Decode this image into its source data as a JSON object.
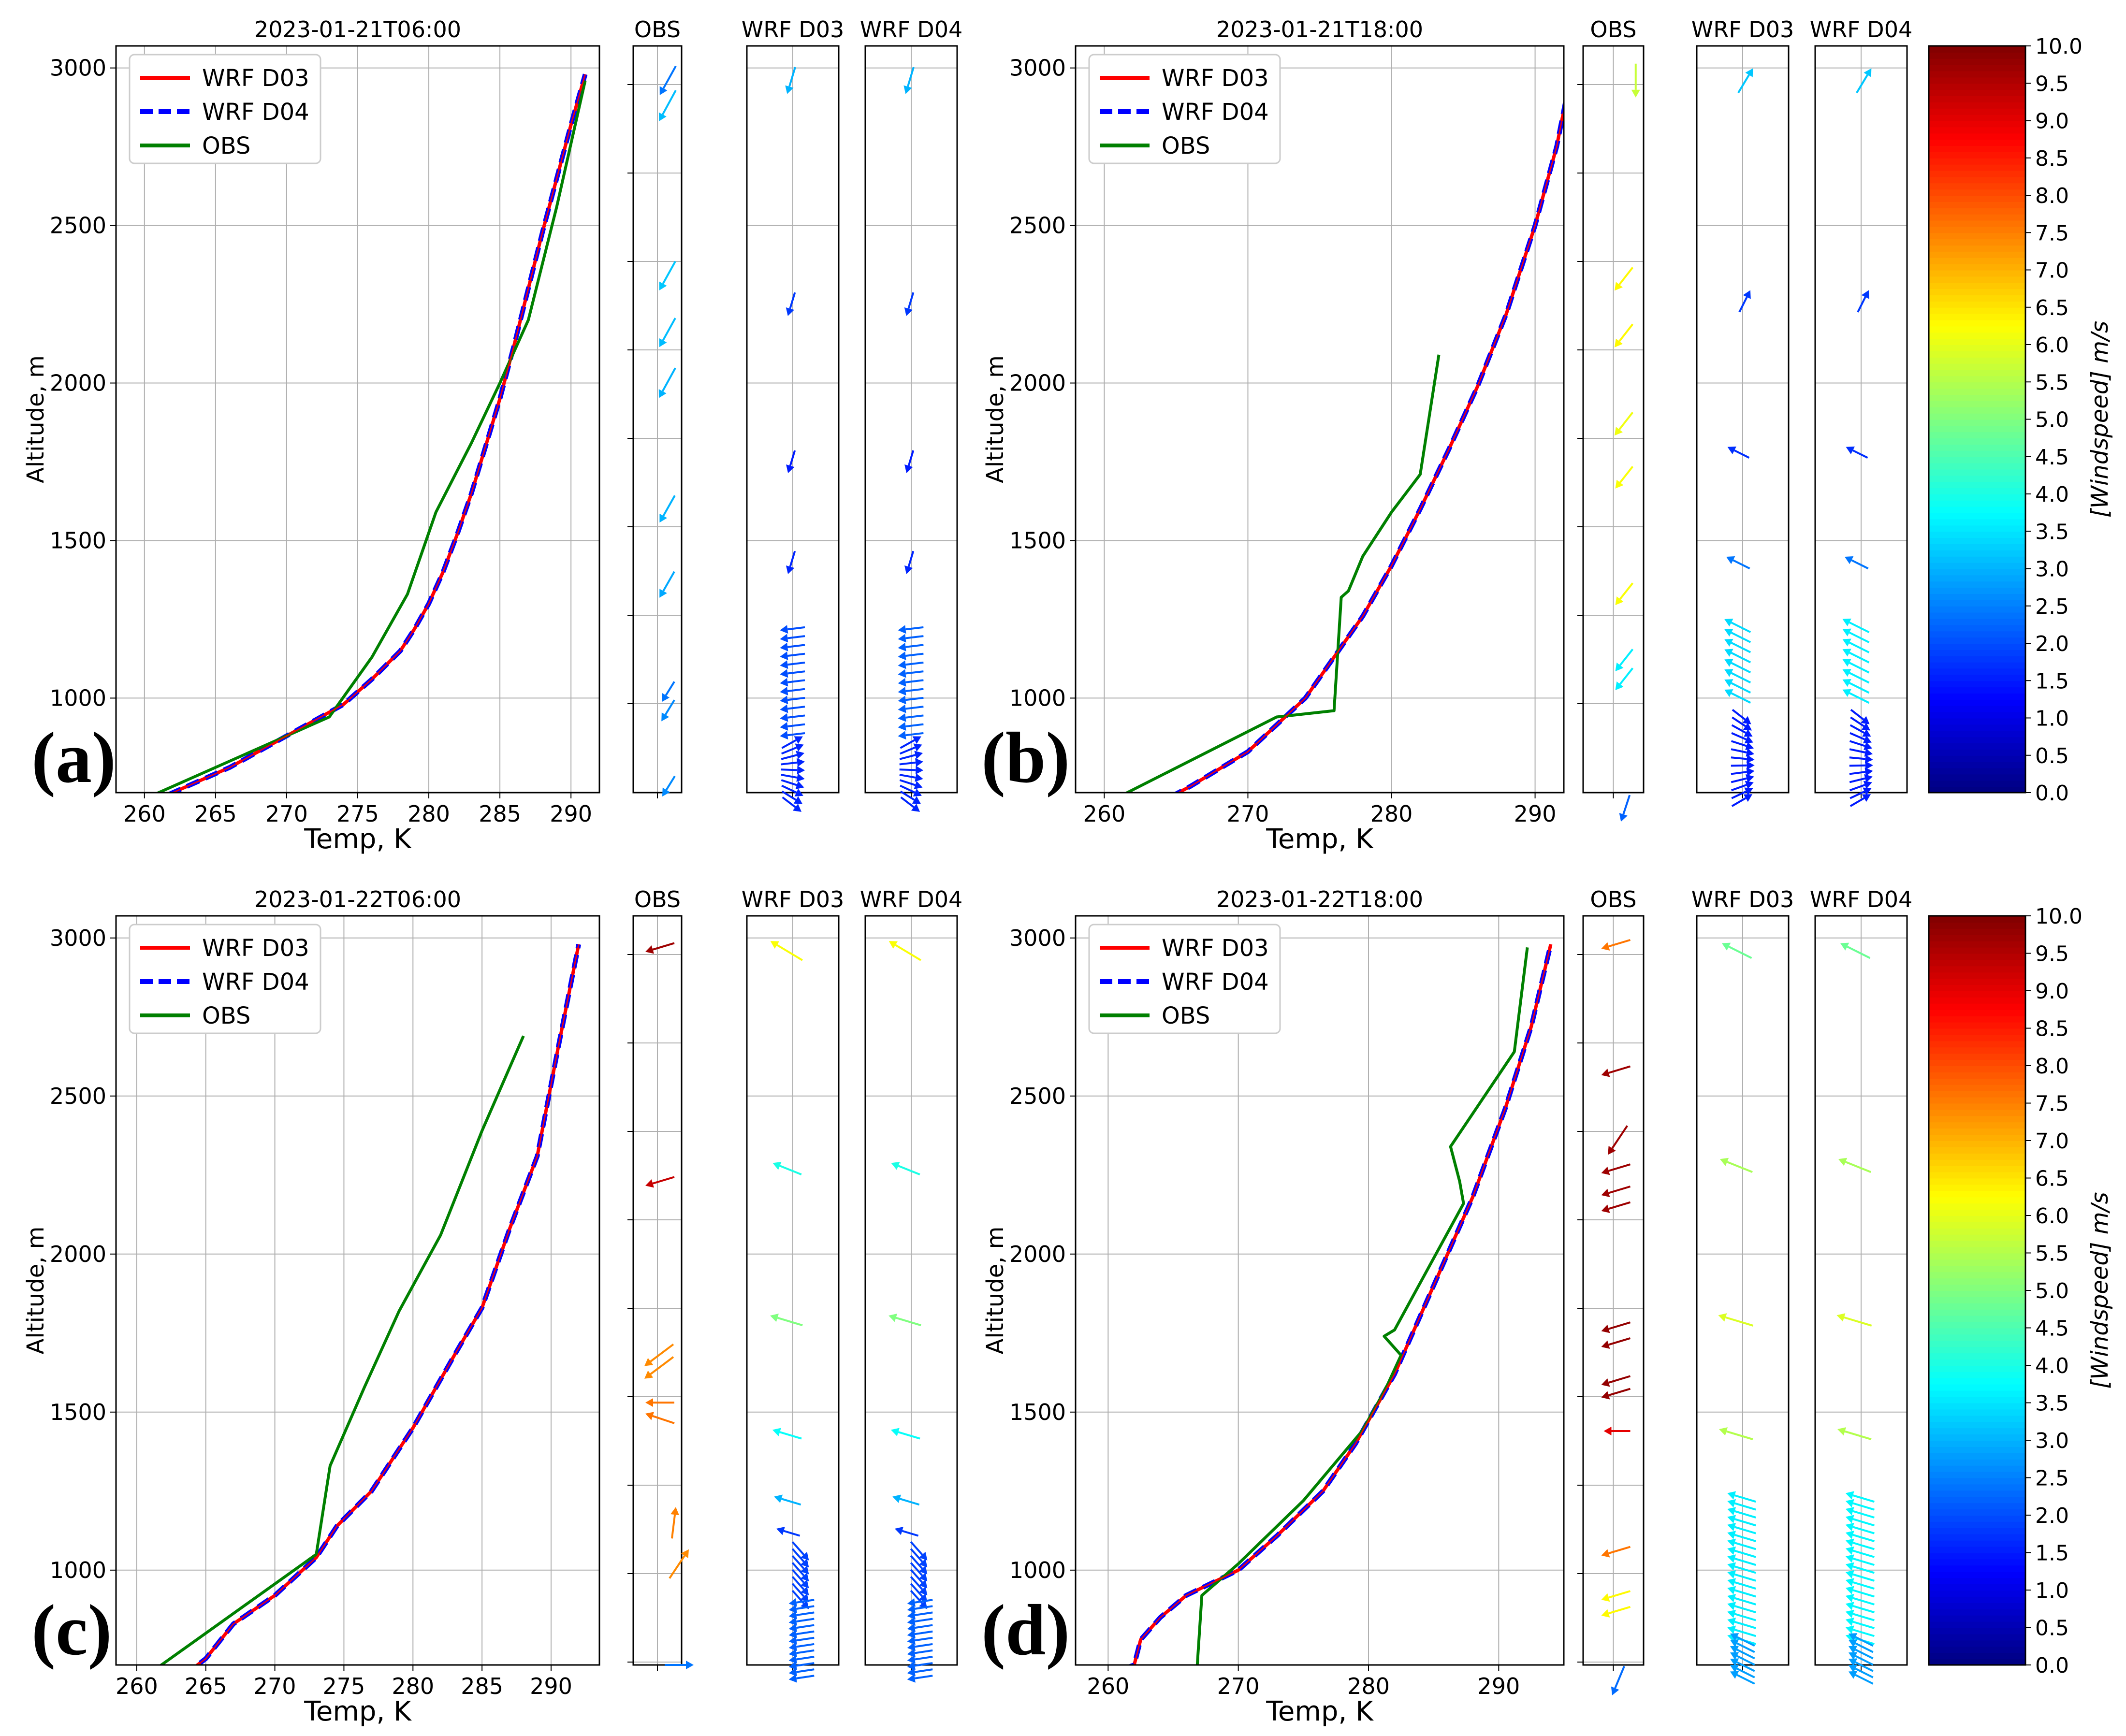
{
  "figure": {
    "colorbar": {
      "label": "[Windspeed]  m/s",
      "ticks": [
        "0.0",
        "0.5",
        "1.0",
        "1.5",
        "2.0",
        "2.5",
        "3.0",
        "3.5",
        "4.0",
        "4.5",
        "5.0",
        "5.5",
        "6.0",
        "6.5",
        "7.0",
        "7.5",
        "8.0",
        "8.5",
        "9.0",
        "9.5",
        "10.0"
      ],
      "range": [
        0,
        10
      ]
    }
  },
  "chart_data": [
    {
      "panel": "(a)",
      "type": "line",
      "title": "2023-01-21T06:00",
      "xlabel": "Temp, K",
      "ylabel": "Altitude, m",
      "xlim": [
        258,
        292
      ],
      "ylim": [
        700,
        3070
      ],
      "xticks": [
        "260",
        "265",
        "270",
        "275",
        "280",
        "285",
        "290"
      ],
      "xtick_values": [
        260,
        265,
        270,
        275,
        280,
        285,
        290
      ],
      "yticks": [
        "1000",
        "1500",
        "2000",
        "2500",
        "3000"
      ],
      "ytick_values": [
        1000,
        1500,
        2000,
        2500,
        3000
      ],
      "legend": [
        "WRF D03",
        "WRF D04",
        "OBS"
      ],
      "series": [
        {
          "name": "WRF D03",
          "color": "#ff0000",
          "x": [
            259,
            260,
            262,
            264,
            266,
            268,
            270,
            272,
            274,
            276,
            278,
            279,
            280,
            281,
            282,
            283,
            284,
            285,
            286,
            287,
            288,
            289,
            290,
            291
          ],
          "y": [
            650,
            660,
            700,
            740,
            780,
            830,
            880,
            930,
            980,
            1060,
            1150,
            1220,
            1300,
            1400,
            1520,
            1650,
            1800,
            1950,
            2120,
            2300,
            2480,
            2650,
            2820,
            2980
          ]
        },
        {
          "name": "WRF D04",
          "color": "#0000ff",
          "x": [
            259,
            260,
            262,
            264,
            266,
            268,
            270,
            272,
            274,
            276,
            278,
            279,
            280,
            281,
            282,
            283,
            284,
            285,
            286,
            287,
            288,
            289,
            290,
            291
          ],
          "y": [
            650,
            660,
            700,
            740,
            780,
            830,
            880,
            930,
            980,
            1060,
            1150,
            1220,
            1300,
            1400,
            1520,
            1650,
            1800,
            1950,
            2120,
            2300,
            2480,
            2650,
            2820,
            2980
          ]
        },
        {
          "name": "OBS",
          "color": "#008000",
          "x": [
            259,
            262,
            266,
            270,
            273,
            276,
            278.5,
            280.5,
            283,
            285,
            287,
            288,
            289,
            290,
            291
          ],
          "y": [
            660,
            720,
            800,
            880,
            940,
            1130,
            1330,
            1590,
            1810,
            2000,
            2200,
            2380,
            2560,
            2760,
            2960
          ]
        }
      ],
      "wind_columns": [
        {
          "label": "OBS",
          "kind": "obs",
          "arrows": [
            [
              2960,
              2.4,
              6.6,
              3.8
            ],
            [
              2880,
              3.1,
              6.6,
              4.2
            ],
            [
              2340,
              3.2,
              6.4,
              3.8
            ],
            [
              2160,
              3.1,
              6.4,
              3.8
            ],
            [
              2000,
              3.0,
              6.4,
              4.0
            ],
            [
              1600,
              3.0,
              6.2,
              3.4
            ],
            [
              1360,
              2.9,
              6.0,
              3.2
            ],
            [
              1020,
              2.4,
              6.0,
              2.0
            ],
            [
              960,
              2.6,
              6.0,
              2.2
            ],
            [
              720,
              2.6,
              6.2,
              2.0
            ]
          ]
        },
        {
          "label": "WRF D03",
          "kind": "model",
          "scheme": "a"
        },
        {
          "label": "WRF D04",
          "kind": "model",
          "scheme": "a"
        }
      ]
    },
    {
      "panel": "(b)",
      "type": "line",
      "title": "2023-01-21T18:00",
      "xlabel": "Temp, K",
      "ylabel": "Altitude, m",
      "xlim": [
        258,
        292
      ],
      "ylim": [
        700,
        3070
      ],
      "xticks": [
        "260",
        "270",
        "280",
        "290"
      ],
      "xtick_values": [
        260,
        270,
        280,
        290
      ],
      "yticks": [
        "1000",
        "1500",
        "2000",
        "2500",
        "3000"
      ],
      "ytick_values": [
        1000,
        1500,
        2000,
        2500,
        3000
      ],
      "legend": [
        "WRF D03",
        "WRF D04",
        "OBS"
      ],
      "series": [
        {
          "name": "WRF D03",
          "color": "#ff0000",
          "x": [
            262,
            263.5,
            266,
            270,
            274,
            278,
            280,
            282,
            284,
            286,
            288,
            290,
            291.5,
            292.5
          ],
          "y": [
            630,
            660,
            720,
            830,
            1000,
            1260,
            1420,
            1600,
            1790,
            1990,
            2220,
            2500,
            2750,
            2980
          ]
        },
        {
          "name": "WRF D04",
          "color": "#0000ff",
          "x": [
            262,
            263.5,
            266,
            270,
            274,
            278,
            280,
            282,
            284,
            286,
            288,
            290,
            291.5,
            292.5
          ],
          "y": [
            630,
            660,
            720,
            830,
            1000,
            1260,
            1420,
            1600,
            1790,
            1990,
            2220,
            2500,
            2750,
            2980
          ]
        },
        {
          "name": "OBS",
          "color": "#008000",
          "x": [
            259,
            272,
            276,
            276.5,
            277,
            278,
            280,
            282,
            283.3
          ],
          "y": [
            640,
            940,
            960,
            1320,
            1340,
            1450,
            1590,
            1710,
            2090
          ]
        }
      ],
      "wind_columns": [
        {
          "label": "OBS",
          "kind": "obs",
          "arrows": [
            [
              2960,
              5.7,
              8.0,
              4.0
            ],
            [
              2330,
              6.3,
              7.0,
              3.5
            ],
            [
              2150,
              6.3,
              7.0,
              3.5
            ],
            [
              1870,
              6.1,
              7.0,
              3.5
            ],
            [
              1700,
              6.2,
              7.0,
              3.2
            ],
            [
              1330,
              6.2,
              7.0,
              3.2
            ],
            [
              1120,
              3.6,
              7.0,
              3.2
            ],
            [
              1060,
              3.6,
              7.0,
              3.2
            ],
            [
              650,
              2.2,
              6.0,
              2.0
            ]
          ]
        },
        {
          "label": "WRF D03",
          "kind": "model",
          "scheme": "b"
        },
        {
          "label": "WRF D04",
          "kind": "model",
          "scheme": "b"
        }
      ]
    },
    {
      "panel": "(c)",
      "type": "line",
      "title": "2023-01-22T06:00",
      "xlabel": "Temp, K",
      "ylabel": "Altitude, m",
      "xlim": [
        258.5,
        293.5
      ],
      "ylim": [
        700,
        3070
      ],
      "xticks": [
        "260",
        "265",
        "270",
        "275",
        "280",
        "285",
        "290"
      ],
      "xtick_values": [
        260,
        265,
        270,
        275,
        280,
        285,
        290
      ],
      "yticks": [
        "1000",
        "1500",
        "2000",
        "2500",
        "3000"
      ],
      "ytick_values": [
        1000,
        1500,
        2000,
        2500,
        3000
      ],
      "legend": [
        "WRF D03",
        "WRF D04",
        "OBS"
      ],
      "series": [
        {
          "name": "WRF D03",
          "color": "#ff0000",
          "x": [
            262,
            263.5,
            265,
            267,
            270,
            273,
            274.5,
            277,
            280,
            283,
            285,
            287,
            289,
            290.5,
            292
          ],
          "y": [
            650,
            670,
            720,
            830,
            920,
            1040,
            1140,
            1250,
            1450,
            1680,
            1830,
            2080,
            2310,
            2650,
            2980
          ]
        },
        {
          "name": "WRF D04",
          "color": "#0000ff",
          "x": [
            262,
            263.5,
            265,
            267,
            270,
            273,
            274.5,
            277,
            280,
            283,
            285,
            287,
            289,
            290.5,
            292
          ],
          "y": [
            650,
            670,
            720,
            830,
            920,
            1040,
            1140,
            1250,
            1450,
            1680,
            1830,
            2080,
            2310,
            2650,
            2980
          ]
        },
        {
          "name": "OBS",
          "color": "#008000",
          "x": [
            260.5,
            273,
            274,
            275,
            276.5,
            279,
            282,
            285,
            288
          ],
          "y": [
            660,
            1050,
            1330,
            1430,
            1580,
            1820,
            2060,
            2390,
            2690
          ]
        }
      ],
      "wind_columns": [
        {
          "label": "OBS",
          "kind": "obs",
          "arrows": [
            [
              2970,
              9.7,
              7.0,
              3.2
            ],
            [
              2230,
              9.3,
              7.0,
              3.5
            ],
            [
              1680,
              7.4,
              6.6,
              4.2
            ],
            [
              1640,
              7.4,
              6.6,
              4.2
            ],
            [
              1530,
              7.6,
              7.0,
              3.8
            ],
            [
              1480,
              7.6,
              7.0,
              3.8
            ],
            [
              1150,
              7.5,
              6.0,
              2.2
            ],
            [
              1020,
              7.4,
              5.0,
              3.5
            ],
            [
              700,
              2.4,
              3.0,
              3.5
            ]
          ]
        },
        {
          "label": "WRF D03",
          "kind": "model",
          "scheme": "c"
        },
        {
          "label": "WRF D04",
          "kind": "model",
          "scheme": "c"
        }
      ]
    },
    {
      "panel": "(d)",
      "type": "line",
      "title": "2023-01-22T18:00",
      "xlabel": "Temp, K",
      "ylabel": "Altitude, m",
      "xlim": [
        257.5,
        295
      ],
      "ylim": [
        700,
        3070
      ],
      "xticks": [
        "260",
        "270",
        "280",
        "290"
      ],
      "xtick_values": [
        260,
        270,
        280,
        290
      ],
      "yticks": [
        "1000",
        "1500",
        "2000",
        "2500",
        "3000"
      ],
      "ytick_values": [
        1000,
        1500,
        2000,
        2500,
        3000
      ],
      "legend": [
        "WRF D03",
        "WRF D04",
        "OBS"
      ],
      "series": [
        {
          "name": "WRF D03",
          "color": "#ff0000",
          "x": [
            258,
            260,
            262,
            262.5,
            264,
            266,
            270,
            273,
            276.5,
            279,
            282,
            285,
            288,
            290.5,
            292.5,
            294
          ],
          "y": [
            660,
            670,
            700,
            780,
            850,
            920,
            1000,
            1110,
            1250,
            1400,
            1620,
            1900,
            2180,
            2460,
            2720,
            2980
          ]
        },
        {
          "name": "WRF D04",
          "color": "#0000ff",
          "x": [
            258,
            260,
            262,
            262.5,
            264,
            266,
            270,
            273,
            276.5,
            279,
            282,
            285,
            288,
            290.5,
            292.5,
            294
          ],
          "y": [
            660,
            670,
            700,
            780,
            850,
            920,
            1000,
            1110,
            1250,
            1400,
            1620,
            1900,
            2180,
            2460,
            2720,
            2980
          ]
        },
        {
          "name": "OBS",
          "color": "#008000",
          "x": [
            266.8,
            267.2,
            270,
            275,
            279.5,
            281,
            281.5,
            282.5,
            281.2,
            282,
            287.3,
            287,
            286.3,
            291.2,
            292.2
          ],
          "y": [
            670,
            920,
            1020,
            1220,
            1440,
            1550,
            1590,
            1680,
            1740,
            1760,
            2160,
            2230,
            2340,
            2640,
            2970
          ]
        }
      ],
      "wind_columns": [
        {
          "label": "OBS",
          "kind": "obs",
          "arrows": [
            [
              2980,
              7.6,
              7.0,
              3.2
            ],
            [
              2580,
              9.7,
              7.0,
              3.8
            ],
            [
              2360,
              9.7,
              6.0,
              4.2
            ],
            [
              2270,
              9.7,
              7.0,
              3.5
            ],
            [
              2200,
              9.7,
              7.0,
              3.0
            ],
            [
              2150,
              9.7,
              7.0,
              3.0
            ],
            [
              1770,
              9.8,
              7.0,
              3.0
            ],
            [
              1720,
              9.8,
              7.0,
              3.0
            ],
            [
              1600,
              9.8,
              7.0,
              3.0
            ],
            [
              1560,
              9.8,
              7.0,
              3.0
            ],
            [
              1440,
              9.0,
              7.0,
              3.0
            ],
            [
              1060,
              7.6,
              7.0,
              3.0
            ],
            [
              920,
              6.3,
              7.0,
              3.2
            ],
            [
              870,
              6.3,
              7.0,
              3.2
            ],
            [
              650,
              2.3,
              5.0,
              3.0
            ]
          ]
        },
        {
          "label": "WRF D03",
          "kind": "model",
          "scheme": "d"
        },
        {
          "label": "WRF D04",
          "kind": "model",
          "scheme": "d"
        }
      ]
    }
  ]
}
